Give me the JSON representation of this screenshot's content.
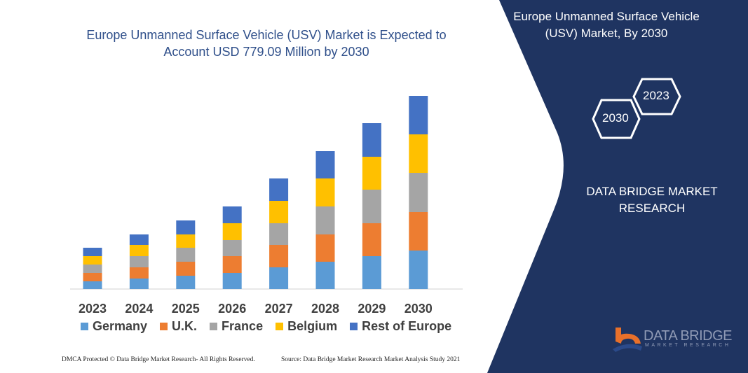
{
  "title": "Europe Unmanned Surface Vehicle (USV) Market is Expected to Account USD 779.09 Million by 2030",
  "side_panel": {
    "title": "Europe Unmanned Surface Vehicle (USV) Market, By 2030",
    "hex_years": [
      "2023",
      "2030"
    ],
    "brand": "DATA BRIDGE MARKET RESEARCH",
    "logo_text": "DATA BRIDGE",
    "logo_subtext": "MARKET RESEARCH",
    "panel_color": "#1f3461",
    "logo_accent": "#e8702a"
  },
  "footer": {
    "left": "DMCA Protected © Data Bridge Market Research- All Rights Reserved.",
    "right": "Source: Data Bridge Market Research Market Analysis Study 2021"
  },
  "chart_data": {
    "type": "bar",
    "stacked": true,
    "title": "Europe Unmanned Surface Vehicle (USV) Market is Expected to Account USD 779.09 Million by 2030",
    "xlabel": "",
    "ylabel": "",
    "y_axis_shown": false,
    "grid": false,
    "legend_position": "bottom",
    "categories": [
      "2023",
      "2024",
      "2025",
      "2026",
      "2027",
      "2028",
      "2029",
      "2030"
    ],
    "series": [
      {
        "name": "Germany",
        "color": "#5b9bd5",
        "values": [
          11,
          15,
          19,
          23,
          31,
          39,
          47,
          55
        ]
      },
      {
        "name": "U.K.",
        "color": "#ed7d31",
        "values": [
          12,
          16,
          20,
          24,
          32,
          39,
          47,
          55
        ]
      },
      {
        "name": "France",
        "color": "#a5a5a5",
        "values": [
          12,
          16,
          20,
          23,
          31,
          40,
          48,
          56
        ]
      },
      {
        "name": "Belgium",
        "color": "#ffc000",
        "values": [
          12,
          16,
          19,
          24,
          32,
          40,
          47,
          55
        ]
      },
      {
        "name": "Rest of Europe",
        "color": "#4472c4",
        "values": [
          12,
          15,
          20,
          24,
          32,
          39,
          48,
          55
        ]
      }
    ]
  }
}
